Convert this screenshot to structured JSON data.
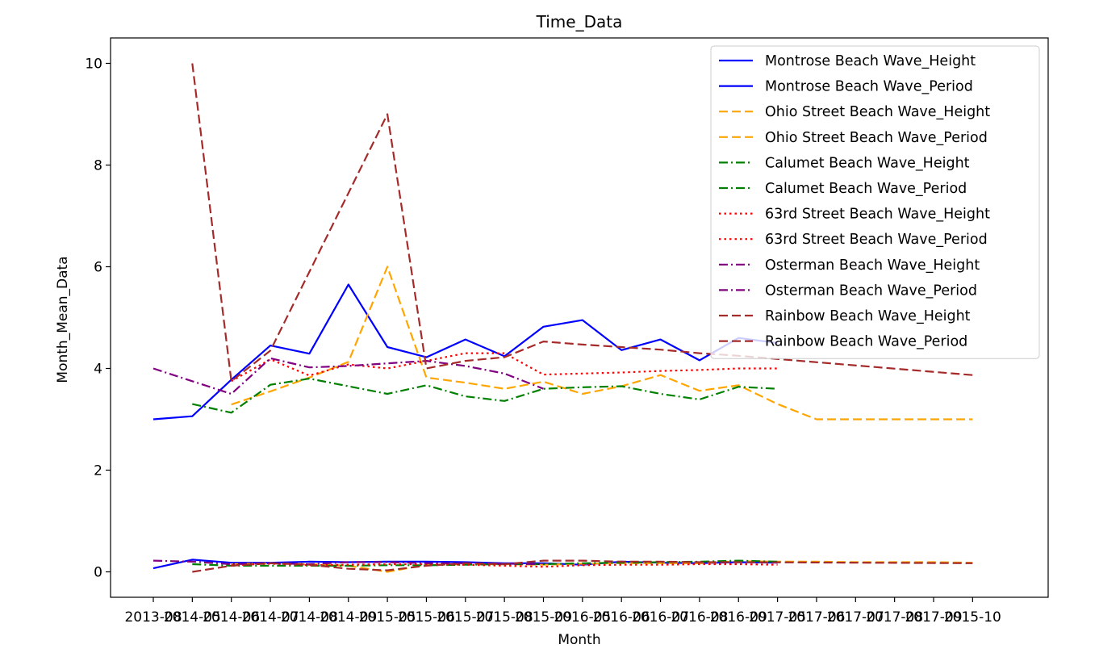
{
  "chart_data": {
    "type": "line",
    "title": "Time_Data",
    "xlabel": "Month",
    "ylabel": "Month_Mean_Data",
    "ylim": [
      -0.5,
      10.5
    ],
    "yticks": [
      0,
      2,
      4,
      6,
      8,
      10
    ],
    "legend_position": "top-right",
    "grid": false,
    "categories": [
      "2013-08",
      "2014-05",
      "2014-06",
      "2014-07",
      "2014-08",
      "2014-09",
      "2015-05",
      "2015-06",
      "2015-07",
      "2015-08",
      "2015-09",
      "2016-05",
      "2016-06",
      "2016-07",
      "2016-08",
      "2016-09",
      "2017-05",
      "2017-06",
      "2017-07",
      "2017-08",
      "2017-09",
      "2015-10"
    ],
    "x_tick_labels": [
      "2013-08",
      "2014-05",
      "2014-06",
      "2014-07",
      "2014-08",
      "2014-09",
      "2015-05",
      "2015-06",
      "2015-07",
      "2015-08",
      "2015-09",
      "2016-05",
      "2016-06",
      "2016-07",
      "2016-08",
      "2016-09",
      "2017-05",
      "2017-06",
      "2017-07",
      "2017-08",
      "2017-09",
      "2015-10"
    ],
    "series": [
      {
        "name": "Montrose Beach Wave_Height",
        "color": "#0000ff",
        "style": "solid",
        "x": [
          0,
          1,
          2,
          3,
          4,
          5,
          6,
          7,
          8,
          9,
          10,
          11,
          12,
          13,
          14,
          15,
          16
        ],
        "values": [
          0.07,
          0.24,
          0.18,
          0.18,
          0.2,
          0.19,
          0.2,
          0.2,
          0.19,
          0.17,
          0.17,
          0.14,
          0.2,
          0.18,
          0.17,
          0.19,
          0.18
        ]
      },
      {
        "name": "Montrose Beach Wave_Period",
        "color": "#0000ff",
        "style": "solid",
        "x": [
          0,
          1,
          2,
          3,
          4,
          5,
          6,
          7,
          8,
          9,
          10,
          11,
          12,
          13,
          14,
          15,
          16
        ],
        "values": [
          3.0,
          3.06,
          3.78,
          4.45,
          4.29,
          5.65,
          4.42,
          4.22,
          4.57,
          4.24,
          4.82,
          4.95,
          4.36,
          4.57,
          4.16,
          4.6,
          4.5
        ]
      },
      {
        "name": "Ohio Street Beach Wave_Height",
        "color": "#ffa500",
        "style": "dashed",
        "x": [
          2,
          3,
          4,
          5,
          6,
          7,
          8,
          9,
          10,
          11,
          12,
          13,
          14,
          15,
          16,
          17,
          18,
          19,
          20,
          21
        ],
        "values": [
          0.15,
          0.17,
          0.15,
          0.12,
          0.0,
          0.14,
          0.15,
          0.15,
          0.14,
          0.16,
          0.17,
          0.17,
          0.17,
          0.21,
          0.2,
          0.2,
          0.19,
          0.19,
          0.19,
          0.18
        ]
      },
      {
        "name": "Ohio Street Beach Wave_Period",
        "color": "#ffa500",
        "style": "dashed",
        "x": [
          2,
          3,
          4,
          5,
          6,
          7,
          8,
          9,
          10,
          11,
          12,
          13,
          14,
          15,
          16,
          17,
          18,
          19,
          20,
          21
        ],
        "values": [
          3.29,
          3.55,
          3.82,
          4.13,
          6.0,
          3.82,
          3.72,
          3.6,
          3.74,
          3.5,
          3.65,
          3.87,
          3.56,
          3.67,
          3.3,
          3.0,
          3.0,
          3.0,
          3.0,
          3.0
        ]
      },
      {
        "name": "Calumet Beach Wave_Height",
        "color": "#008000",
        "style": "dashdot",
        "x": [
          1,
          2,
          3,
          4,
          5,
          6,
          7,
          8,
          9,
          10,
          11,
          12,
          13,
          14,
          15,
          16
        ],
        "values": [
          0.15,
          0.12,
          0.12,
          0.12,
          0.12,
          0.13,
          0.13,
          0.14,
          0.15,
          0.15,
          0.17,
          0.18,
          0.19,
          0.2,
          0.22,
          0.2
        ]
      },
      {
        "name": "Calumet Beach Wave_Period",
        "color": "#008000",
        "style": "dashdot",
        "x": [
          1,
          2,
          3,
          4,
          5,
          6,
          7,
          8,
          9,
          10,
          11,
          12,
          13,
          14,
          15,
          16
        ],
        "values": [
          3.3,
          3.13,
          3.68,
          3.8,
          3.65,
          3.5,
          3.67,
          3.45,
          3.36,
          3.6,
          3.63,
          3.65,
          3.5,
          3.39,
          3.64,
          3.6
        ]
      },
      {
        "name": "63rd Street Beach Wave_Height",
        "color": "#ff0000",
        "style": "dotted",
        "x": [
          2,
          3,
          4,
          5,
          6,
          7,
          8,
          9,
          10,
          11,
          12,
          13,
          14,
          15,
          16
        ],
        "values": [
          0.13,
          0.16,
          0.13,
          0.14,
          0.15,
          0.15,
          0.14,
          0.12,
          0.1,
          0.13,
          0.14,
          0.14,
          0.15,
          0.15,
          0.14
        ]
      },
      {
        "name": "63rd Street Beach Wave_Period",
        "color": "#ff0000",
        "style": "dotted",
        "x": [
          2,
          3,
          4,
          5,
          6,
          7,
          8,
          9,
          10,
          11,
          12,
          13,
          14,
          15,
          16
        ],
        "values": [
          3.75,
          4.18,
          3.86,
          4.08,
          4.0,
          4.15,
          4.3,
          4.3,
          3.88,
          3.9,
          3.92,
          3.95,
          3.97,
          4.0,
          4.0
        ]
      },
      {
        "name": "Osterman Beach Wave_Height",
        "color": "#800080",
        "style": "dashdot",
        "x": [
          0,
          1,
          2,
          3,
          4,
          5,
          6,
          7,
          8,
          9,
          10
        ],
        "values": [
          0.22,
          0.2,
          0.15,
          0.17,
          0.15,
          0.19,
          0.19,
          0.17,
          0.17,
          0.16,
          0.15
        ]
      },
      {
        "name": "Osterman Beach Wave_Period",
        "color": "#800080",
        "style": "dashdot",
        "x": [
          0,
          1,
          2,
          3,
          4,
          5,
          6,
          7,
          8,
          9,
          10
        ],
        "values": [
          4.0,
          3.75,
          3.5,
          4.2,
          4.02,
          4.05,
          4.1,
          4.15,
          4.05,
          3.9,
          3.6
        ]
      },
      {
        "name": "Rainbow Beach Wave_Height",
        "color": "#a52a2a",
        "style": "dashed",
        "x": [
          1,
          2,
          3,
          4,
          5,
          6,
          7,
          8,
          9,
          10,
          11,
          12,
          13,
          14,
          15,
          21
        ],
        "values": [
          0.0,
          0.12,
          0.17,
          0.14,
          0.06,
          0.03,
          0.12,
          0.17,
          0.15,
          0.22,
          0.22,
          0.2,
          0.2,
          0.19,
          0.19,
          0.17
        ]
      },
      {
        "name": "Rainbow Beach Wave_Period",
        "color": "#a52a2a",
        "style": "dashed",
        "x": [
          1,
          2,
          3,
          4,
          5,
          6,
          7,
          8,
          9,
          10,
          11,
          12,
          13,
          14,
          15,
          21
        ],
        "values": [
          10.0,
          3.75,
          4.35,
          5.9,
          7.45,
          9.0,
          4.0,
          4.15,
          4.22,
          4.53,
          4.47,
          4.42,
          4.37,
          4.3,
          4.25,
          3.87
        ]
      }
    ]
  }
}
